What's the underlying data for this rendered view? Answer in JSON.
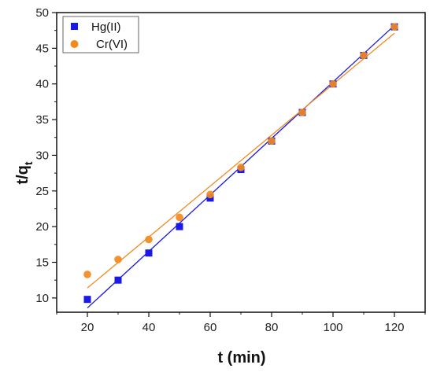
{
  "chart_data": {
    "type": "scatter",
    "xlabel": "t (min)",
    "ylabel_main": "t/q",
    "ylabel_sub": "t",
    "xlim": [
      10,
      130
    ],
    "ylim": [
      8,
      50
    ],
    "x_ticks": [
      20,
      40,
      60,
      80,
      100,
      120
    ],
    "y_ticks": [
      10,
      15,
      20,
      25,
      30,
      35,
      40,
      45,
      50
    ],
    "x_tick_labels": [
      "20",
      "40",
      "60",
      "80",
      "100",
      "120"
    ],
    "y_tick_labels": [
      "10",
      "15",
      "20",
      "25",
      "30",
      "35",
      "40",
      "45",
      "50"
    ],
    "legend_position": "top-left",
    "series": [
      {
        "name": "Hg(II)",
        "marker": "square",
        "color": "#1a1ae6",
        "x": [
          20,
          30,
          40,
          50,
          60,
          70,
          80,
          90,
          100,
          110,
          120
        ],
        "y": [
          9.8,
          12.5,
          16.3,
          20.0,
          24.0,
          28.0,
          32.0,
          36.0,
          40.0,
          44.0,
          48.0
        ],
        "fit": {
          "x": [
            20,
            120
          ],
          "y": [
            8.6,
            48.2
          ]
        }
      },
      {
        "name": "Cr(VI)",
        "marker": "circle",
        "color": "#f28a1e",
        "x": [
          20,
          30,
          40,
          50,
          60,
          70,
          80,
          90,
          100,
          110,
          120
        ],
        "y": [
          13.3,
          15.4,
          18.2,
          21.3,
          24.5,
          28.3,
          32.0,
          36.0,
          40.0,
          44.0,
          48.0
        ],
        "fit": {
          "x": [
            20,
            120
          ],
          "y": [
            11.4,
            47.1
          ]
        }
      }
    ]
  }
}
